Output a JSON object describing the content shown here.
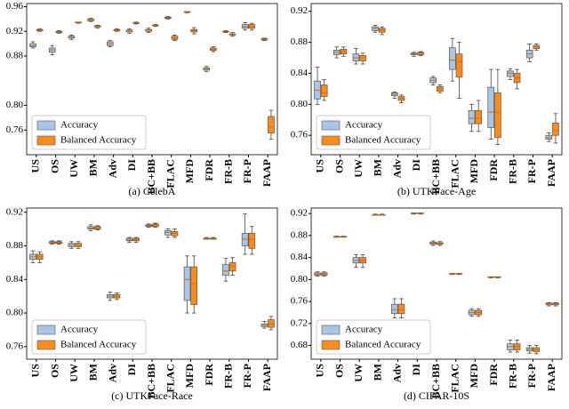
{
  "chart_data": [
    {
      "type": "box",
      "caption": "(a) CelebA",
      "legend": "lower left",
      "categories": [
        "US",
        "OS",
        "UW",
        "BM",
        "Adv",
        "DI",
        "BC+BB",
        "FLAC",
        "MFD",
        "FDR",
        "FR-B",
        "FR-P",
        "FAAP"
      ],
      "ylim": [
        0.72,
        0.965
      ],
      "yticks": [
        0.76,
        {
          "value": 0.8,
          "label": "0.80"
        },
        0.88,
        0.92,
        0.96
      ],
      "series": [
        {
          "name": "Accuracy",
          "color": "#a9c5e6",
          "values": [
            [
              0.893,
              0.895,
              0.897,
              0.9,
              0.903
            ],
            [
              0.882,
              0.886,
              0.89,
              0.893,
              0.897
            ],
            [
              0.907,
              0.909,
              0.911,
              0.912,
              0.914
            ],
            [
              0.936,
              0.937,
              0.939,
              0.94,
              0.941
            ],
            [
              0.895,
              0.897,
              0.9,
              0.903,
              0.905
            ],
            [
              0.917,
              0.919,
              0.921,
              0.922,
              0.924
            ],
            [
              0.918,
              0.92,
              0.922,
              0.923,
              0.925
            ],
            [
              0.94,
              0.941,
              0.942,
              0.943,
              0.944
            ],
            [
              0.95,
              0.951,
              0.951,
              0.952,
              0.952
            ],
            [
              0.855,
              0.857,
              0.859,
              0.861,
              0.863
            ],
            [
              0.918,
              0.919,
              0.919,
              0.92,
              0.921
            ],
            [
              0.922,
              0.925,
              0.928,
              0.931,
              0.934
            ],
            [
              0.905,
              0.906,
              0.907,
              0.908,
              0.909
            ]
          ]
        },
        {
          "name": "Balanced Accuracy",
          "color": "#ff8c1a",
          "values": [
            [
              0.92,
              0.921,
              0.922,
              0.923,
              0.924
            ],
            [
              0.917,
              0.918,
              0.919,
              0.92,
              0.921
            ],
            [
              0.933,
              0.934,
              0.934,
              0.935,
              0.935
            ],
            [
              0.925,
              0.927,
              0.928,
              0.929,
              0.93
            ],
            [
              0.92,
              0.921,
              0.922,
              0.923,
              0.924
            ],
            [
              0.932,
              0.933,
              0.934,
              0.934,
              0.935
            ],
            [
              0.928,
              0.929,
              0.93,
              0.93,
              0.931
            ],
            [
              0.905,
              0.907,
              0.909,
              0.912,
              0.914
            ],
            [
              0.916,
              0.919,
              0.921,
              0.923,
              0.926
            ],
            [
              0.887,
              0.889,
              0.891,
              0.893,
              0.895
            ],
            [
              0.912,
              0.914,
              0.915,
              0.916,
              0.918
            ],
            [
              0.922,
              0.925,
              0.928,
              0.931,
              0.933
            ],
            [
              0.745,
              0.755,
              0.765,
              0.782,
              0.792
            ]
          ]
        }
      ]
    },
    {
      "type": "box",
      "caption": "(b) UTKFace-Age",
      "legend": "lower left",
      "categories": [
        "US",
        "OS",
        "UW",
        "BM",
        "Adv",
        "DI",
        "BC+BB",
        "FLAC",
        "MFD",
        "FDR",
        "FR-B",
        "FR-P",
        "FAAP"
      ],
      "ylim": [
        0.735,
        0.93
      ],
      "yticks": [
        0.76,
        {
          "value": 0.8,
          "label": "0.80"
        },
        0.84,
        0.88,
        0.92
      ],
      "series": [
        {
          "name": "Accuracy",
          "color": "#a9c5e6",
          "values": [
            [
              0.8,
              0.807,
              0.818,
              0.83,
              0.848
            ],
            [
              0.86,
              0.864,
              0.867,
              0.87,
              0.874
            ],
            [
              0.852,
              0.856,
              0.86,
              0.865,
              0.872
            ],
            [
              0.893,
              0.895,
              0.898,
              0.9,
              0.902
            ],
            [
              0.808,
              0.811,
              0.813,
              0.815,
              0.816
            ],
            [
              0.862,
              0.864,
              0.865,
              0.866,
              0.867
            ],
            [
              0.825,
              0.828,
              0.831,
              0.834,
              0.836
            ],
            [
              0.83,
              0.845,
              0.857,
              0.873,
              0.885
            ],
            [
              0.765,
              0.775,
              0.782,
              0.792,
              0.8
            ],
            [
              0.755,
              0.77,
              0.79,
              0.822,
              0.845
            ],
            [
              0.832,
              0.836,
              0.84,
              0.843,
              0.846
            ],
            [
              0.855,
              0.86,
              0.865,
              0.87,
              0.878
            ],
            [
              0.752,
              0.755,
              0.757,
              0.76,
              0.763
            ]
          ]
        },
        {
          "name": "Balanced Accuracy",
          "color": "#ff8c1a",
          "values": [
            [
              0.805,
              0.81,
              0.815,
              0.825,
              0.832
            ],
            [
              0.862,
              0.865,
              0.868,
              0.871,
              0.874
            ],
            [
              0.852,
              0.856,
              0.86,
              0.863,
              0.866
            ],
            [
              0.89,
              0.893,
              0.896,
              0.898,
              0.9
            ],
            [
              0.802,
              0.805,
              0.808,
              0.81,
              0.812
            ],
            [
              0.863,
              0.864,
              0.866,
              0.867,
              0.868
            ],
            [
              0.815,
              0.817,
              0.82,
              0.823,
              0.825
            ],
            [
              0.808,
              0.835,
              0.855,
              0.865,
              0.88
            ],
            [
              0.765,
              0.775,
              0.782,
              0.792,
              0.805
            ],
            [
              0.748,
              0.757,
              0.79,
              0.815,
              0.845
            ],
            [
              0.82,
              0.828,
              0.834,
              0.84,
              0.845
            ],
            [
              0.87,
              0.872,
              0.874,
              0.876,
              0.878
            ],
            [
              0.75,
              0.76,
              0.766,
              0.776,
              0.788
            ]
          ]
        }
      ]
    },
    {
      "type": "box",
      "caption": "(c) UTKFace-Race",
      "legend": "lower left",
      "categories": [
        "US",
        "OS",
        "UW",
        "BM",
        "Adv",
        "DI",
        "BC+BB",
        "FLAC",
        "MFD",
        "FDR",
        "FR-B",
        "FR-P",
        "FAAP"
      ],
      "ylim": [
        0.745,
        0.925
      ],
      "yticks": [
        0.76,
        {
          "value": 0.8,
          "label": "0.80"
        },
        0.84,
        0.88,
        0.92
      ],
      "series": [
        {
          "name": "Accuracy",
          "color": "#a9c5e6",
          "values": [
            [
              0.86,
              0.864,
              0.867,
              0.87,
              0.874
            ],
            [
              0.882,
              0.883,
              0.884,
              0.885,
              0.886
            ],
            [
              0.877,
              0.879,
              0.881,
              0.883,
              0.885
            ],
            [
              0.898,
              0.9,
              0.901,
              0.903,
              0.905
            ],
            [
              0.815,
              0.818,
              0.82,
              0.822,
              0.825
            ],
            [
              0.884,
              0.886,
              0.887,
              0.889,
              0.89
            ],
            [
              0.902,
              0.903,
              0.904,
              0.905,
              0.906
            ],
            [
              0.89,
              0.893,
              0.896,
              0.898,
              0.9
            ],
            [
              0.8,
              0.815,
              0.84,
              0.855,
              0.868
            ],
            [
              0.888,
              0.888,
              0.889,
              0.889,
              0.89
            ],
            [
              0.838,
              0.845,
              0.85,
              0.858,
              0.865
            ],
            [
              0.87,
              0.88,
              0.888,
              0.895,
              0.918
            ],
            [
              0.782,
              0.784,
              0.785,
              0.787,
              0.79
            ]
          ]
        },
        {
          "name": "Balanced Accuracy",
          "color": "#ff8c1a",
          "values": [
            [
              0.86,
              0.864,
              0.867,
              0.87,
              0.873
            ],
            [
              0.882,
              0.883,
              0.884,
              0.885,
              0.886
            ],
            [
              0.877,
              0.879,
              0.881,
              0.883,
              0.885
            ],
            [
              0.899,
              0.9,
              0.902,
              0.903,
              0.904
            ],
            [
              0.816,
              0.818,
              0.82,
              0.822,
              0.824
            ],
            [
              0.884,
              0.886,
              0.887,
              0.889,
              0.89
            ],
            [
              0.902,
              0.903,
              0.905,
              0.906,
              0.907
            ],
            [
              0.89,
              0.892,
              0.895,
              0.897,
              0.9
            ],
            [
              0.8,
              0.81,
              0.835,
              0.855,
              0.868
            ],
            [
              0.888,
              0.888,
              0.889,
              0.889,
              0.89
            ],
            [
              0.845,
              0.85,
              0.856,
              0.86,
              0.866
            ],
            [
              0.87,
              0.877,
              0.888,
              0.895,
              0.903
            ],
            [
              0.78,
              0.783,
              0.787,
              0.792,
              0.796
            ]
          ]
        }
      ]
    },
    {
      "type": "box",
      "caption": "(d) CIFAR-10S",
      "legend": "lower left",
      "categories": [
        "US",
        "OS",
        "UW",
        "BM",
        "Adv",
        "DI",
        "BC+BB",
        "FLAC",
        "MFD",
        "FDR",
        "FR-B",
        "FR-P",
        "FAAP"
      ],
      "ylim": [
        0.655,
        0.93
      ],
      "yticks": [
        0.68,
        0.72,
        0.76,
        {
          "value": 0.8,
          "label": "0.80"
        },
        0.84,
        0.88,
        0.92
      ],
      "series": [
        {
          "name": "Accuracy",
          "color": "#a9c5e6",
          "values": [
            [
              0.806,
              0.808,
              0.81,
              0.812,
              0.814
            ],
            [
              0.877,
              0.877,
              0.878,
              0.878,
              0.879
            ],
            [
              0.822,
              0.83,
              0.835,
              0.84,
              0.845
            ],
            [
              0.917,
              0.917,
              0.918,
              0.918,
              0.919
            ],
            [
              0.73,
              0.738,
              0.745,
              0.755,
              0.765
            ],
            [
              0.919,
              0.92,
              0.92,
              0.921,
              0.921
            ],
            [
              0.862,
              0.864,
              0.866,
              0.868,
              0.87
            ],
            [
              0.809,
              0.81,
              0.81,
              0.811,
              0.811
            ],
            [
              0.733,
              0.736,
              0.74,
              0.744,
              0.747
            ],
            [
              0.803,
              0.804,
              0.804,
              0.805,
              0.805
            ],
            [
              0.668,
              0.672,
              0.678,
              0.683,
              0.69
            ],
            [
              0.666,
              0.67,
              0.673,
              0.676,
              0.68
            ],
            [
              0.752,
              0.754,
              0.756,
              0.757,
              0.758
            ]
          ]
        },
        {
          "name": "Balanced Accuracy",
          "color": "#ff8c1a",
          "values": [
            [
              0.806,
              0.808,
              0.81,
              0.812,
              0.814
            ],
            [
              0.877,
              0.877,
              0.878,
              0.878,
              0.879
            ],
            [
              0.822,
              0.83,
              0.835,
              0.84,
              0.845
            ],
            [
              0.917,
              0.917,
              0.918,
              0.918,
              0.919
            ],
            [
              0.73,
              0.738,
              0.745,
              0.755,
              0.765
            ],
            [
              0.919,
              0.92,
              0.92,
              0.921,
              0.921
            ],
            [
              0.862,
              0.864,
              0.866,
              0.867,
              0.869
            ],
            [
              0.809,
              0.81,
              0.81,
              0.811,
              0.811
            ],
            [
              0.733,
              0.736,
              0.74,
              0.744,
              0.747
            ],
            [
              0.803,
              0.804,
              0.804,
              0.805,
              0.805
            ],
            [
              0.668,
              0.672,
              0.678,
              0.683,
              0.69
            ],
            [
              0.665,
              0.669,
              0.672,
              0.676,
              0.68
            ],
            [
              0.752,
              0.754,
              0.756,
              0.757,
              0.758
            ]
          ]
        }
      ]
    }
  ]
}
